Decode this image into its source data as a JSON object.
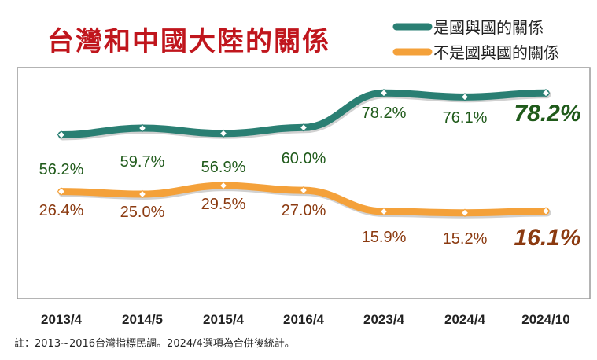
{
  "chart_data": {
    "type": "line",
    "title": "台灣和中國大陸的關係",
    "note": "註：2013~2016台灣指標民調。2024/4選項為合併後統計。",
    "categories": [
      "2013/4",
      "2014/5",
      "2015/4",
      "2016/4",
      "2023/4",
      "2024/4",
      "2024/10"
    ],
    "ylim": [
      0,
      100
    ],
    "grid": false,
    "legend_position": "top-right",
    "series": [
      {
        "name": "是國與國的關係",
        "color": "#2a7f73",
        "label_color": "#1f5a1a",
        "values": [
          56.2,
          59.7,
          56.9,
          60.0,
          78.2,
          76.1,
          78.2
        ],
        "labels": [
          "56.2%",
          "59.7%",
          "56.9%",
          "60.0%",
          "78.2%",
          "76.1%",
          "78.2%"
        ]
      },
      {
        "name": "不是國與國的關係",
        "color": "#f4a13a",
        "label_color": "#8b3a10",
        "values": [
          26.4,
          25.0,
          29.5,
          27.0,
          15.9,
          15.2,
          16.1
        ],
        "labels": [
          "26.4%",
          "25.0%",
          "29.5%",
          "27.0%",
          "15.9%",
          "15.2%",
          "16.1%"
        ]
      }
    ]
  }
}
